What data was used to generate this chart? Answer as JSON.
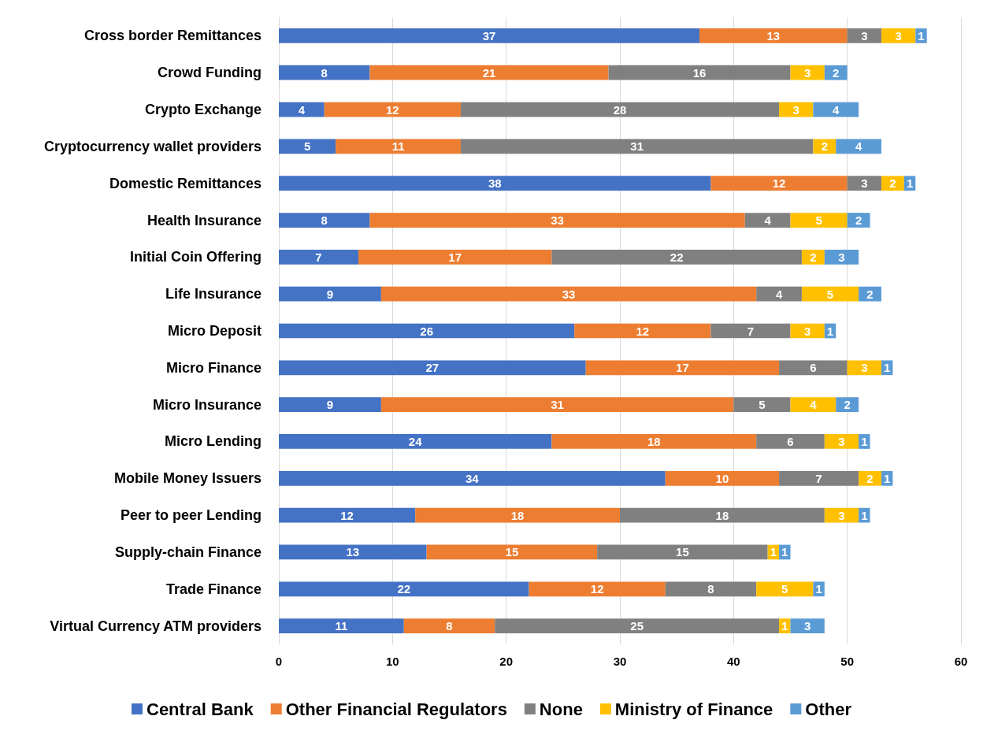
{
  "chart_data": {
    "type": "bar",
    "orientation": "horizontal",
    "stacked": true,
    "data_labels": true,
    "grid": "x",
    "legend": "bottom",
    "categories": [
      "Cross border Remittances",
      "Crowd Funding",
      "Crypto Exchange",
      "Cryptocurrency wallet providers",
      "Domestic Remittances",
      "Health Insurance",
      "Initial Coin Offering",
      "Life Insurance",
      "Micro Deposit",
      "Micro Finance",
      "Micro Insurance",
      "Micro Lending",
      "Mobile Money Issuers",
      "Peer to peer Lending",
      "Supply-chain Finance",
      "Trade Finance",
      "Virtual Currency ATM providers"
    ],
    "xlim": [
      0,
      60
    ],
    "xticks": [
      0,
      10,
      20,
      30,
      40,
      50,
      60
    ],
    "series": [
      {
        "name": "Central Bank",
        "color": "#4472c4",
        "values": [
          37,
          8,
          4,
          5,
          38,
          8,
          7,
          9,
          26,
          27,
          9,
          24,
          34,
          12,
          13,
          22,
          11
        ]
      },
      {
        "name": "Other Financial Regulators",
        "color": "#ed7d31",
        "values": [
          13,
          21,
          12,
          11,
          12,
          33,
          17,
          33,
          12,
          17,
          31,
          18,
          10,
          18,
          15,
          12,
          8
        ]
      },
      {
        "name": "None",
        "color": "#808080",
        "values": [
          3,
          16,
          28,
          31,
          3,
          4,
          22,
          4,
          7,
          6,
          5,
          6,
          7,
          18,
          15,
          8,
          25
        ]
      },
      {
        "name": "Ministry of Finance",
        "color": "#ffc000",
        "values": [
          3,
          3,
          3,
          2,
          2,
          5,
          2,
          5,
          3,
          3,
          4,
          3,
          2,
          3,
          1,
          5,
          1
        ]
      },
      {
        "name": "Other",
        "color": "#5b9bd5",
        "values": [
          1,
          2,
          4,
          4,
          1,
          2,
          3,
          2,
          1,
          1,
          2,
          1,
          1,
          1,
          1,
          1,
          3
        ]
      }
    ]
  }
}
